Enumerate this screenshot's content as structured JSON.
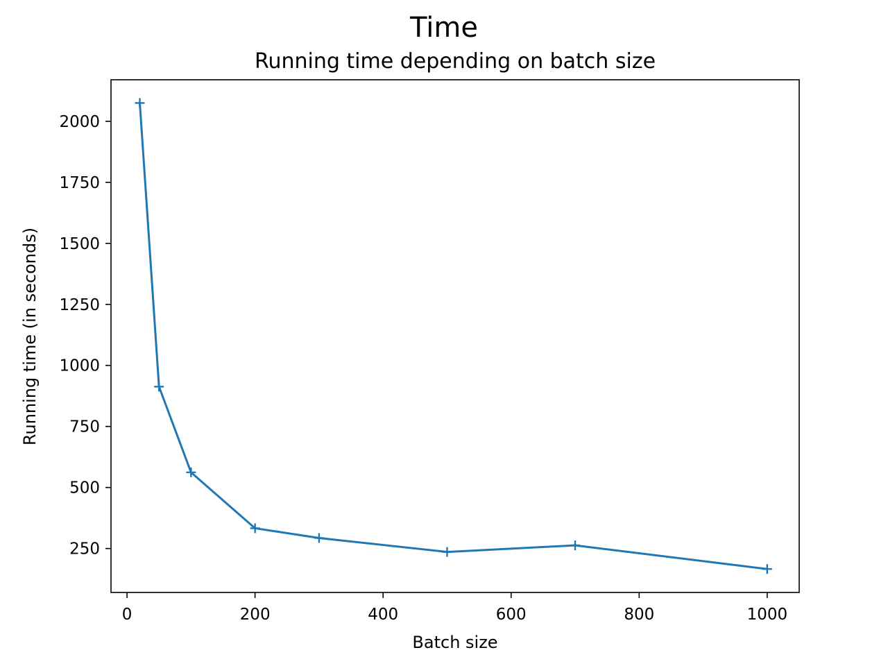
{
  "figure": {
    "suptitle": "Time"
  },
  "chart_data": {
    "type": "line",
    "title": "Running time depending on batch size",
    "xlabel": "Batch size",
    "ylabel": "Running time (in seconds)",
    "xlim": [
      -25,
      1050
    ],
    "ylim": [
      70,
      2170
    ],
    "xticks": [
      0,
      200,
      400,
      600,
      800,
      1000
    ],
    "yticks": [
      250,
      500,
      750,
      1000,
      1250,
      1500,
      1750,
      2000
    ],
    "grid": false,
    "marker": "+",
    "line_color": "#1f77b4",
    "series": [
      {
        "x": [
          20,
          50,
          100,
          200,
          300,
          500,
          700,
          1000
        ],
        "y": [
          2075,
          913,
          562,
          333,
          293,
          236,
          263,
          166
        ]
      }
    ]
  }
}
